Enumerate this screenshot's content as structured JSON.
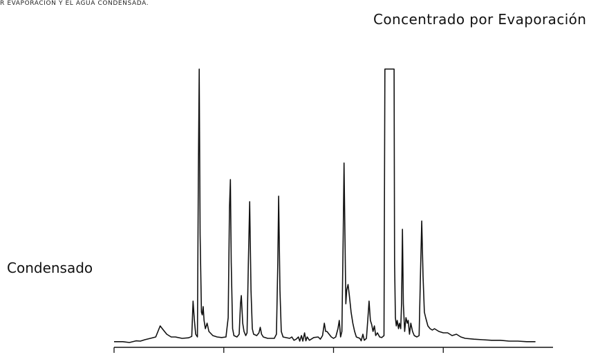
{
  "figure": {
    "caption_fragment": "R EVAPORACION Y EL AGUA CONDENSADA.",
    "title": "Concentrado por Evaporación",
    "side_label": "Condensado",
    "line_color": "#111111"
  },
  "chart_data": {
    "type": "line",
    "title": "Concentrado por Evaporación",
    "xlabel": "",
    "ylabel": "",
    "grid": false,
    "legend": "none",
    "xlim": [
      0,
      100
    ],
    "ylim": [
      0,
      100
    ],
    "x_ticks": [
      0,
      25,
      50,
      75
    ],
    "series": [
      {
        "name": "",
        "points": [
          [
            0.0,
            1.3
          ],
          [
            2.0,
            1.3
          ],
          [
            3.5,
            1.0
          ],
          [
            5.0,
            1.6
          ],
          [
            6.0,
            1.5
          ],
          [
            7.0,
            2.0
          ],
          [
            8.5,
            2.6
          ],
          [
            9.5,
            3.0
          ],
          [
            10.5,
            7.0
          ],
          [
            11.0,
            6.0
          ],
          [
            12.0,
            4.0
          ],
          [
            13.0,
            3.0
          ],
          [
            14.0,
            3.0
          ],
          [
            15.5,
            2.5
          ],
          [
            17.0,
            2.7
          ],
          [
            17.7,
            3.2
          ],
          [
            18.0,
            16.0
          ],
          [
            18.3,
            9.0
          ],
          [
            18.6,
            4.0
          ],
          [
            19.0,
            3.0
          ],
          [
            19.2,
            60.0
          ],
          [
            19.4,
            100.0
          ],
          [
            19.6,
            40.0
          ],
          [
            19.9,
            12.0
          ],
          [
            20.1,
            11.0
          ],
          [
            20.3,
            14.0
          ],
          [
            20.5,
            9.0
          ],
          [
            20.8,
            6.0
          ],
          [
            21.2,
            8.0
          ],
          [
            21.6,
            5.0
          ],
          [
            22.5,
            3.5
          ],
          [
            23.5,
            3.0
          ],
          [
            24.5,
            2.8
          ],
          [
            25.5,
            3.0
          ],
          [
            26.0,
            10.0
          ],
          [
            26.3,
            50.0
          ],
          [
            26.5,
            60.0
          ],
          [
            26.7,
            30.0
          ],
          [
            27.0,
            6.0
          ],
          [
            27.3,
            3.5
          ],
          [
            28.0,
            3.0
          ],
          [
            28.5,
            4.0
          ],
          [
            28.8,
            15.0
          ],
          [
            29.0,
            18.0
          ],
          [
            29.3,
            8.0
          ],
          [
            29.6,
            5.0
          ],
          [
            30.0,
            3.5
          ],
          [
            30.3,
            4.5
          ],
          [
            30.6,
            30.0
          ],
          [
            30.9,
            52.0
          ],
          [
            31.2,
            20.0
          ],
          [
            31.5,
            6.0
          ],
          [
            31.8,
            4.0
          ],
          [
            32.5,
            3.5
          ],
          [
            33.0,
            4.5
          ],
          [
            33.3,
            6.5
          ],
          [
            33.6,
            4.0
          ],
          [
            34.0,
            3.0
          ],
          [
            35.0,
            2.5
          ],
          [
            36.5,
            2.5
          ],
          [
            37.0,
            4.0
          ],
          [
            37.3,
            30.0
          ],
          [
            37.5,
            54.0
          ],
          [
            37.8,
            20.0
          ],
          [
            38.1,
            5.0
          ],
          [
            38.5,
            3.0
          ],
          [
            40.0,
            2.5
          ],
          [
            40.5,
            3.0
          ],
          [
            41.0,
            1.8
          ],
          [
            41.5,
            2.2
          ],
          [
            42.0,
            3.0
          ],
          [
            42.3,
            1.5
          ],
          [
            42.7,
            3.5
          ],
          [
            43.0,
            1.5
          ],
          [
            43.4,
            4.5
          ],
          [
            43.7,
            1.6
          ],
          [
            44.0,
            3.0
          ],
          [
            44.5,
            1.8
          ],
          [
            45.5,
            2.8
          ],
          [
            46.5,
            3.0
          ],
          [
            47.0,
            2.2
          ],
          [
            47.5,
            3.5
          ],
          [
            47.9,
            8.0
          ],
          [
            48.2,
            5.0
          ],
          [
            48.5,
            5.0
          ],
          [
            49.0,
            4.0
          ],
          [
            49.5,
            3.0
          ],
          [
            50.0,
            2.5
          ],
          [
            50.5,
            3.0
          ],
          [
            51.0,
            6.0
          ],
          [
            51.3,
            9.0
          ],
          [
            51.6,
            3.0
          ],
          [
            51.9,
            5.0
          ],
          [
            52.2,
            40.0
          ],
          [
            52.4,
            66.0
          ],
          [
            52.6,
            40.0
          ],
          [
            52.8,
            15.0
          ],
          [
            53.0,
            20.0
          ],
          [
            53.3,
            22.0
          ],
          [
            53.6,
            18.0
          ],
          [
            54.0,
            12.0
          ],
          [
            54.4,
            8.0
          ],
          [
            54.8,
            5.0
          ],
          [
            55.2,
            3.0
          ],
          [
            56.0,
            2.5
          ],
          [
            56.3,
            1.6
          ],
          [
            56.7,
            4.0
          ],
          [
            57.0,
            1.8
          ],
          [
            57.5,
            2.5
          ],
          [
            57.8,
            9.0
          ],
          [
            58.1,
            16.0
          ],
          [
            58.4,
            9.0
          ],
          [
            58.7,
            7.5
          ],
          [
            59.0,
            5.0
          ],
          [
            59.3,
            7.0
          ],
          [
            59.6,
            3.5
          ],
          [
            60.0,
            4.5
          ],
          [
            60.5,
            3.0
          ],
          [
            61.0,
            2.8
          ],
          [
            61.5,
            3.5
          ],
          [
            61.7,
            100.0
          ],
          [
            63.8,
            100.0
          ],
          [
            63.9,
            30.0
          ],
          [
            64.1,
            10.0
          ],
          [
            64.3,
            7.0
          ],
          [
            64.5,
            9.0
          ],
          [
            64.8,
            6.0
          ],
          [
            65.0,
            8.0
          ],
          [
            65.3,
            6.0
          ],
          [
            65.5,
            15.0
          ],
          [
            65.7,
            42.0
          ],
          [
            65.9,
            15.0
          ],
          [
            66.2,
            5.0
          ],
          [
            66.5,
            10.0
          ],
          [
            66.8,
            8.0
          ],
          [
            67.0,
            9.0
          ],
          [
            67.3,
            4.0
          ],
          [
            67.6,
            8.0
          ],
          [
            68.0,
            5.0
          ],
          [
            68.4,
            3.5
          ],
          [
            69.0,
            3.0
          ],
          [
            69.5,
            3.5
          ],
          [
            69.8,
            25.0
          ],
          [
            70.1,
            45.0
          ],
          [
            70.4,
            25.0
          ],
          [
            70.7,
            12.0
          ],
          [
            71.0,
            10.0
          ],
          [
            71.5,
            7.0
          ],
          [
            72.0,
            6.0
          ],
          [
            72.5,
            5.5
          ],
          [
            73.0,
            6.0
          ],
          [
            74.0,
            5.0
          ],
          [
            75.0,
            4.5
          ],
          [
            76.0,
            4.5
          ],
          [
            77.0,
            3.5
          ],
          [
            78.0,
            4.0
          ],
          [
            79.0,
            3.0
          ],
          [
            80.0,
            2.5
          ],
          [
            82.0,
            2.2
          ],
          [
            84.0,
            2.0
          ],
          [
            86.0,
            1.8
          ],
          [
            88.0,
            1.8
          ],
          [
            90.0,
            1.5
          ],
          [
            92.0,
            1.5
          ],
          [
            94.0,
            1.3
          ],
          [
            96.0,
            1.3
          ]
        ]
      }
    ]
  }
}
